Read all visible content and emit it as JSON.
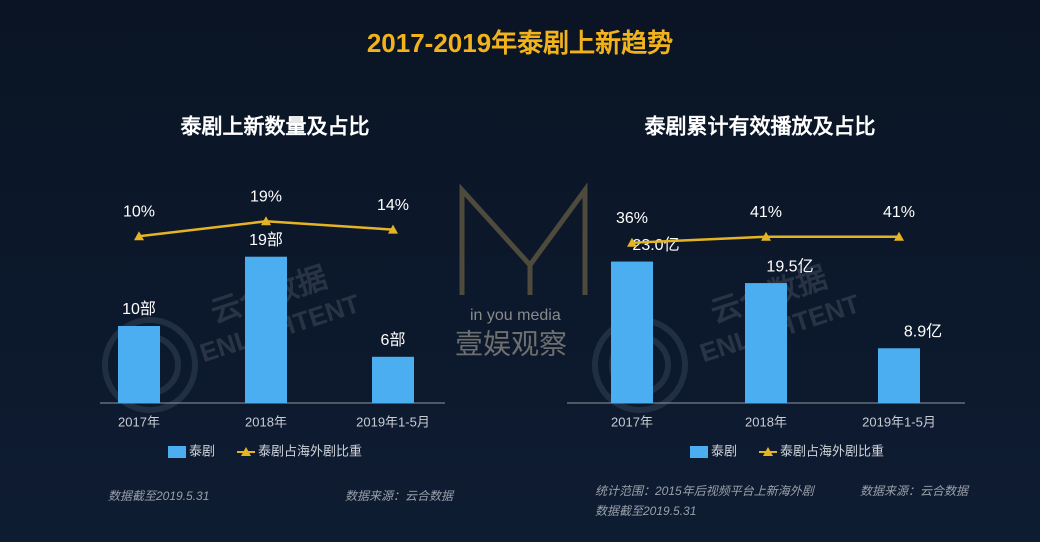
{
  "title": "2017-2019年泰剧上新趋势",
  "watermarks": [
    "云合数据",
    "ENLIGHTENT",
    "in you media",
    "壹娱观察"
  ],
  "chart_data": [
    {
      "type": "bar",
      "title": "泰剧上新数量及占比",
      "categories": [
        "2017年",
        "2018年",
        "2019年1-5月"
      ],
      "series": [
        {
          "name": "泰剧",
          "color": "#4aaef0",
          "values": [
            10,
            19,
            6
          ],
          "value_labels": [
            "10部",
            "19部",
            "6部"
          ]
        },
        {
          "name": "泰剧占海外剧比重",
          "color": "#e5b425",
          "axis": "y2",
          "values": [
            10,
            19,
            14
          ],
          "value_labels": [
            "10%",
            "19%",
            "14%"
          ]
        }
      ],
      "notes": [
        "数据截至2019.5.31",
        "数据来源：云合数据"
      ]
    },
    {
      "type": "bar",
      "title": "泰剧累计有效播放及占比",
      "categories": [
        "2017年",
        "2018年",
        "2019年1-5月"
      ],
      "series": [
        {
          "name": "泰剧",
          "color": "#4aaef0",
          "values": [
            23.0,
            19.5,
            8.9
          ],
          "value_labels": [
            "23.0亿",
            "19.5亿",
            "8.9亿"
          ]
        },
        {
          "name": "泰剧占海外剧比重",
          "color": "#e5b425",
          "axis": "y2",
          "values": [
            36,
            41,
            41
          ],
          "value_labels": [
            "36%",
            "41%",
            "41%"
          ]
        }
      ],
      "notes": [
        "统计范围：2015年后视频平台上新海外剧",
        "数据来源：云合数据",
        "数据截至2019.5.31"
      ]
    }
  ]
}
